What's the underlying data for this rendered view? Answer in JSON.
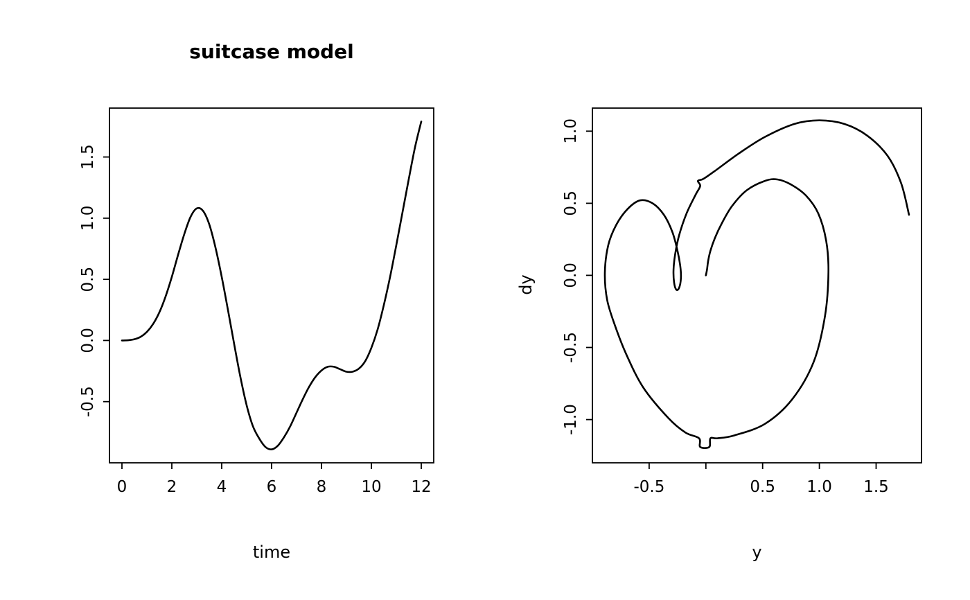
{
  "figure": {
    "background": "#ffffff",
    "line_color": "#000000",
    "text_color": "#000000"
  },
  "chart_data": [
    {
      "type": "line",
      "title": "suitcase model",
      "xlabel": "time",
      "ylabel": "",
      "xlim": [
        -0.5,
        12.5
      ],
      "ylim": [
        -1.0,
        1.9
      ],
      "grid": false,
      "legend": "none",
      "xticks": {
        "values": [
          0,
          2,
          4,
          6,
          8,
          10,
          12
        ],
        "labels": [
          "0",
          "2",
          "4",
          "6",
          "8",
          "10",
          "12"
        ]
      },
      "yticks": {
        "values": [
          -0.5,
          0,
          0.5,
          1,
          1.5
        ],
        "labels": [
          "-0.5",
          "0.0",
          "0.5",
          "1.0",
          "1.5"
        ]
      },
      "points": [
        [
          0,
          0
        ],
        [
          0.25,
          0.002
        ],
        [
          0.5,
          0.01
        ],
        [
          0.75,
          0.03
        ],
        [
          1,
          0.07
        ],
        [
          1.25,
          0.135
        ],
        [
          1.5,
          0.23
        ],
        [
          1.75,
          0.36
        ],
        [
          2,
          0.52
        ],
        [
          2.25,
          0.7
        ],
        [
          2.5,
          0.87
        ],
        [
          2.75,
          1.01
        ],
        [
          3,
          1.08
        ],
        [
          3.25,
          1.06
        ],
        [
          3.5,
          0.95
        ],
        [
          3.75,
          0.76
        ],
        [
          4,
          0.52
        ],
        [
          4.25,
          0.25
        ],
        [
          4.5,
          -0.03
        ],
        [
          4.75,
          -0.3
        ],
        [
          5,
          -0.53
        ],
        [
          5.25,
          -0.7
        ],
        [
          5.5,
          -0.8
        ],
        [
          5.75,
          -0.87
        ],
        [
          6,
          -0.89
        ],
        [
          6.25,
          -0.86
        ],
        [
          6.5,
          -0.79
        ],
        [
          6.75,
          -0.7
        ],
        [
          7,
          -0.59
        ],
        [
          7.25,
          -0.48
        ],
        [
          7.5,
          -0.38
        ],
        [
          7.75,
          -0.3
        ],
        [
          8,
          -0.245
        ],
        [
          8.25,
          -0.215
        ],
        [
          8.5,
          -0.215
        ],
        [
          8.75,
          -0.235
        ],
        [
          9,
          -0.255
        ],
        [
          9.25,
          -0.255
        ],
        [
          9.5,
          -0.23
        ],
        [
          9.75,
          -0.17
        ],
        [
          10,
          -0.06
        ],
        [
          10.25,
          0.09
        ],
        [
          10.5,
          0.29
        ],
        [
          10.75,
          0.52
        ],
        [
          11,
          0.78
        ],
        [
          11.25,
          1.05
        ],
        [
          11.5,
          1.32
        ],
        [
          11.75,
          1.58
        ],
        [
          12,
          1.79
        ]
      ]
    },
    {
      "type": "line",
      "title": "",
      "xlabel": "y",
      "ylabel": "dy",
      "xlim": [
        -1.0,
        1.9
      ],
      "ylim": [
        -1.3,
        1.16
      ],
      "grid": false,
      "legend": "none",
      "xticks": {
        "values": [
          -0.5,
          0,
          0.5,
          1,
          1.5
        ],
        "labels": [
          "-0.5",
          "",
          "0.5",
          "1.0",
          "1.5"
        ]
      },
      "yticks": {
        "values": [
          -1,
          -0.5,
          0,
          0.5,
          1
        ],
        "labels": [
          "-1.0",
          "-0.5",
          "0.0",
          "0.5",
          "1.0"
        ]
      },
      "points": [
        [
          0,
          0
        ],
        [
          0.01,
          0.04
        ],
        [
          0.02,
          0.1
        ],
        [
          0.04,
          0.17
        ],
        [
          0.08,
          0.26
        ],
        [
          0.14,
          0.36
        ],
        [
          0.23,
          0.48
        ],
        [
          0.36,
          0.59
        ],
        [
          0.52,
          0.655
        ],
        [
          0.63,
          0.665
        ],
        [
          0.75,
          0.63
        ],
        [
          0.88,
          0.555
        ],
        [
          0.99,
          0.43
        ],
        [
          1.06,
          0.24
        ],
        [
          1.08,
          0.02
        ],
        [
          1.05,
          -0.28
        ],
        [
          0.95,
          -0.6
        ],
        [
          0.76,
          -0.86
        ],
        [
          0.52,
          -1.03
        ],
        [
          0.25,
          -1.11
        ],
        [
          0.1,
          -1.13
        ],
        [
          0.04,
          -1.13
        ],
        [
          0.03,
          -1.19
        ],
        [
          -0.05,
          -1.19
        ],
        [
          -0.06,
          -1.13
        ],
        [
          -0.18,
          -1.09
        ],
        [
          -0.33,
          -0.99
        ],
        [
          -0.55,
          -0.78
        ],
        [
          -0.7,
          -0.55
        ],
        [
          -0.8,
          -0.35
        ],
        [
          -0.87,
          -0.17
        ],
        [
          -0.89,
          0.02
        ],
        [
          -0.86,
          0.21
        ],
        [
          -0.79,
          0.35
        ],
        [
          -0.69,
          0.46
        ],
        [
          -0.58,
          0.52
        ],
        [
          -0.47,
          0.5
        ],
        [
          -0.37,
          0.42
        ],
        [
          -0.295,
          0.3
        ],
        [
          -0.25,
          0.17
        ],
        [
          -0.225,
          0.06
        ],
        [
          -0.22,
          -0.02
        ],
        [
          -0.235,
          -0.085
        ],
        [
          -0.26,
          -0.1
        ],
        [
          -0.28,
          -0.05
        ],
        [
          -0.285,
          0.04
        ],
        [
          -0.27,
          0.15
        ],
        [
          -0.235,
          0.28
        ],
        [
          -0.17,
          0.43
        ],
        [
          -0.09,
          0.56
        ],
        [
          -0.05,
          0.62
        ],
        [
          -0.07,
          0.655
        ],
        [
          -0.02,
          0.67
        ],
        [
          0.09,
          0.73
        ],
        [
          0.29,
          0.845
        ],
        [
          0.52,
          0.96
        ],
        [
          0.78,
          1.05
        ],
        [
          1,
          1.075
        ],
        [
          1.22,
          1.05
        ],
        [
          1.42,
          0.97
        ],
        [
          1.6,
          0.83
        ],
        [
          1.72,
          0.64
        ],
        [
          1.79,
          0.42
        ]
      ]
    }
  ]
}
